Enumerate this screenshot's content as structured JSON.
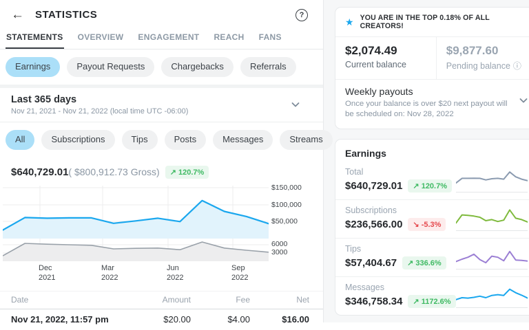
{
  "colors": {
    "accent": "#1aa7ee",
    "pill-active": "#abdff8",
    "pill-bg": "#f0f1f2",
    "green-t": "#3fba63",
    "green-b": "#e9f7ee",
    "red-t": "#e5484d",
    "red-b": "#fdecec",
    "gray-text": "#8a96a3",
    "border": "#e7e9eb"
  },
  "header": {
    "back_icon": "←",
    "title": "STATISTICS",
    "help_icon": "?"
  },
  "tabs": [
    {
      "label": "STATEMENTS",
      "active": true
    },
    {
      "label": "OVERVIEW",
      "active": false
    },
    {
      "label": "ENGAGEMENT",
      "active": false
    },
    {
      "label": "REACH",
      "active": false
    },
    {
      "label": "FANS",
      "active": false
    }
  ],
  "category_pills": [
    {
      "label": "Earnings",
      "active": true
    },
    {
      "label": "Payout Requests",
      "active": false
    },
    {
      "label": "Chargebacks",
      "active": false
    },
    {
      "label": "Referrals",
      "active": false
    }
  ],
  "date_range": {
    "label": "Last 365 days",
    "detail": "Nov 21, 2021 - Nov 21, 2022 (local time UTC -06:00)"
  },
  "type_pills": [
    {
      "label": "All",
      "active": true
    },
    {
      "label": "Subscriptions",
      "active": false
    },
    {
      "label": "Tips",
      "active": false
    },
    {
      "label": "Posts",
      "active": false
    },
    {
      "label": "Messages",
      "active": false
    },
    {
      "label": "Streams",
      "active": false
    }
  ],
  "summary": {
    "net": "$640,729.01",
    "gross": "( $800,912.73 Gross)",
    "change": "↗ 120.7%"
  },
  "chart_data": {
    "main": {
      "type": "area",
      "x_ticks": [
        {
          "m": "Dec",
          "y": "2021"
        },
        {
          "m": "Mar",
          "y": "2022"
        },
        {
          "m": "Jun",
          "y": "2022"
        },
        {
          "m": "Sep",
          "y": "2022"
        }
      ],
      "y_ticks_currency": [
        "$150,000",
        "$100,000",
        "$50,000"
      ],
      "y_ticks_count": [
        "6000",
        "3000"
      ],
      "series": [
        {
          "name": "Earnings ($)",
          "color": "#1aa7ee",
          "fill": "#e1f3fc",
          "ylim": [
            0,
            150000
          ],
          "values": [
            25000,
            62000,
            60000,
            61000,
            61000,
            45000,
            52000,
            60000,
            50000,
            112000,
            80000,
            65000,
            44000
          ]
        },
        {
          "name": "Transactions",
          "color": "#99a1a9",
          "fill": "#ededee",
          "ylim": [
            0,
            6000
          ],
          "values": [
            2000,
            6500,
            6200,
            6000,
            5800,
            4500,
            4700,
            4800,
            4200,
            7000,
            4800,
            4000,
            3300
          ]
        }
      ],
      "legend": "none",
      "grid": true
    }
  },
  "table": {
    "columns": [
      "Date",
      "Amount",
      "Fee",
      "Net"
    ],
    "rows": [
      {
        "date": "Nov 21, 2022, 11:57 pm",
        "amount": "$20.00",
        "fee": "$4.00",
        "net": "$16.00"
      }
    ]
  },
  "right": {
    "banner": "YOU ARE IN THE TOP 0.18% OF ALL CREATORS!",
    "star_icon": "★",
    "balances": {
      "current": {
        "amount": "$2,074.49",
        "label": "Current balance"
      },
      "pending": {
        "amount": "$9,877.60",
        "label": "Pending balance",
        "info_icon": "ⓘ"
      }
    },
    "payouts": {
      "title": "Weekly payouts",
      "description": "Once your balance is over $20 next payout will be scheduled on: Nov 28, 2022"
    },
    "earnings": {
      "title": "Earnings",
      "items": [
        {
          "label": "Total",
          "amount": "$640,729.01",
          "change": "↗ 120.7%",
          "trend": "up",
          "color": "#8b9bb0",
          "spark": [
            28,
            52,
            52,
            53,
            52,
            44,
            50,
            52,
            48,
            85,
            60,
            48,
            40
          ]
        },
        {
          "label": "Subscriptions",
          "amount": "$236,566.00",
          "change": "↘ -5.3%",
          "trend": "down",
          "color": "#7fba3d",
          "spark": [
            20,
            62,
            60,
            56,
            50,
            32,
            38,
            28,
            35,
            88,
            45,
            38,
            25
          ]
        },
        {
          "label": "Tips",
          "amount": "$57,404.67",
          "change": "↗ 336.6%",
          "trend": "up",
          "color": "#9b7fd4",
          "spark": [
            20,
            32,
            42,
            58,
            30,
            14,
            48,
            42,
            24,
            72,
            28,
            26,
            22
          ]
        },
        {
          "label": "Messages",
          "amount": "$346,758.34",
          "change": "↗ 1172.6%",
          "trend": "up",
          "color": "#1aa7ee",
          "spark": [
            22,
            32,
            30,
            34,
            40,
            32,
            44,
            48,
            44,
            76,
            58,
            45,
            30
          ]
        }
      ]
    }
  }
}
